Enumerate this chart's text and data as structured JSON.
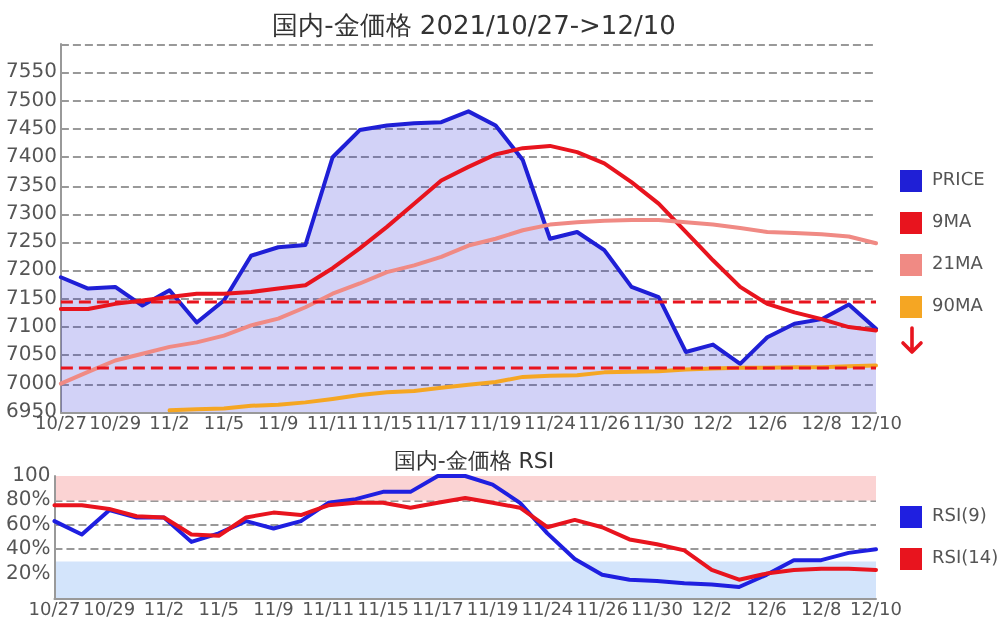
{
  "chart_data": [
    {
      "type": "line",
      "title": "国内-金価格 2021/10/27->12/10",
      "categories": [
        "10/27",
        null,
        "10/29",
        null,
        "11/2",
        null,
        "11/5",
        null,
        "11/9",
        null,
        "11/11",
        null,
        "11/15",
        null,
        "11/17",
        null,
        "11/19",
        null,
        "11/24",
        null,
        "11/26",
        null,
        "11/30",
        null,
        "12/2",
        null,
        "12/6",
        null,
        "12/8",
        null,
        "12/10"
      ],
      "series": [
        {
          "name": "PRICE",
          "type": "area",
          "color": "#1f1fd6",
          "values": [
            7188,
            7168,
            7171,
            7138,
            7165,
            7108,
            7147,
            7226,
            7241,
            7245,
            7400,
            7448,
            7456,
            7460,
            7462,
            7481,
            7456,
            7395,
            7256,
            7268,
            7236,
            7171,
            7153,
            7056,
            7069,
            7035,
            7082,
            7106,
            7114,
            7140,
            7097
          ]
        },
        {
          "name": "9MA",
          "color": "#e8141e",
          "values": [
            7132,
            7132,
            7141,
            7147,
            7153,
            7159,
            7159,
            7162,
            7168,
            7174,
            7204,
            7239,
            7277,
            7318,
            7359,
            7383,
            7405,
            7416,
            7420,
            7409,
            7389,
            7356,
            7318,
            7268,
            7218,
            7171,
            7141,
            7126,
            7114,
            7100,
            7094
          ]
        },
        {
          "name": "21MA",
          "color": "#f08a84",
          "values": [
            7000,
            7021,
            7041,
            7053,
            7065,
            7073,
            7085,
            7103,
            7115,
            7135,
            7159,
            7177,
            7197,
            7209,
            7224,
            7244,
            7256,
            7271,
            7281,
            7285,
            7288,
            7289,
            7289,
            7285,
            7281,
            7275,
            7268,
            7266,
            7264,
            7260,
            7248
          ]
        },
        {
          "name": "90MA",
          "color": "#f5a623",
          "values": [
            null,
            null,
            null,
            null,
            6953,
            6955,
            6956,
            6961,
            6963,
            6967,
            6973,
            6980,
            6985,
            6987,
            6993,
            6998,
            7003,
            7012,
            7014,
            7015,
            7020,
            7021,
            7022,
            7025,
            7027,
            7028,
            7028,
            7029,
            7029,
            7031,
            7032
          ]
        }
      ],
      "ylim": [
        6950,
        7600
      ],
      "yticks": [
        6950,
        7000,
        7050,
        7100,
        7150,
        7200,
        7250,
        7300,
        7350,
        7400,
        7450,
        7500,
        7550
      ],
      "ref_lines": [
        {
          "axis": "y",
          "value": 7144,
          "color": "#e8141e",
          "line_style": "dashed"
        },
        {
          "axis": "y",
          "value": 7030,
          "color": "#e8141e",
          "line_style": "dashed"
        }
      ],
      "grid": "y",
      "legend": "right",
      "marker": "none"
    },
    {
      "type": "line",
      "title": "国内-金価格 RSI",
      "categories": [
        "10/27",
        null,
        "10/29",
        null,
        "11/2",
        null,
        "11/5",
        null,
        "11/9",
        null,
        "11/11",
        null,
        "11/15",
        null,
        "11/17",
        null,
        "11/19",
        null,
        "11/24",
        null,
        "11/26",
        null,
        "11/30",
        null,
        "12/2",
        null,
        "12/6",
        null,
        "12/8",
        null,
        "12/10"
      ],
      "series": [
        {
          "name": "RSI(9)",
          "color": "#1f1fe0",
          "values": [
            63,
            52,
            72,
            66,
            66,
            46,
            53,
            63,
            57,
            63,
            78,
            81,
            87,
            87,
            100,
            100,
            93,
            78,
            53,
            32,
            19,
            15,
            14,
            12,
            11,
            9,
            19,
            31,
            31,
            37,
            40
          ]
        },
        {
          "name": "RSI(14)",
          "color": "#e8141e",
          "values": [
            76,
            76,
            73,
            67,
            66,
            52,
            51,
            66,
            70,
            68,
            76,
            78,
            78,
            74,
            78,
            82,
            78,
            74,
            58,
            64,
            58,
            48,
            44,
            39,
            23,
            15,
            20,
            23,
            24,
            24,
            23
          ]
        }
      ],
      "ylim": [
        0,
        100
      ],
      "yticks": [
        {
          "value": 20,
          "label": "20%"
        },
        {
          "value": 40,
          "label": "40%"
        },
        {
          "value": 60,
          "label": "60%"
        },
        {
          "value": 80,
          "label": "80%"
        },
        100
      ],
      "bands": [
        {
          "axis": "y",
          "from": 80,
          "to": 100,
          "color": "#fbd3d3"
        },
        {
          "axis": "y",
          "from": 0,
          "to": 30,
          "color": "#d3e4fb"
        }
      ],
      "grid": "y",
      "legend": "right",
      "marker": "none"
    }
  ]
}
